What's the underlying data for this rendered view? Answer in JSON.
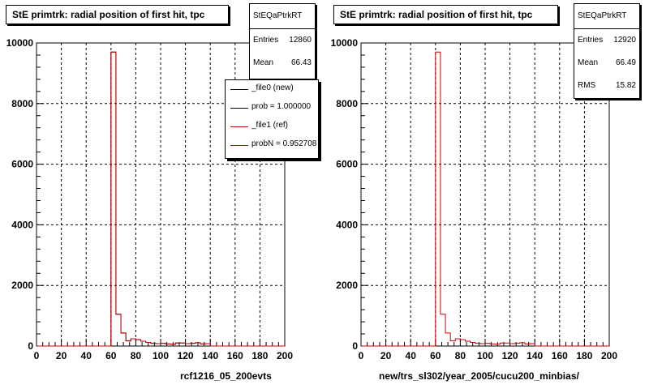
{
  "colors": {
    "new": "#000000",
    "ref": "#cc0000",
    "grid": "#000000"
  },
  "panels": [
    {
      "title": "StE primtrk: radial position of first hit, tpc",
      "stats": {
        "name": "StEQaPtrkRT",
        "rows": [
          {
            "label": "Entries",
            "value": "12860"
          },
          {
            "label": "Mean",
            "value": "66.43"
          }
        ]
      },
      "legend": [
        {
          "label": "_file0 (new)",
          "color": "#000000"
        },
        {
          "label": "prob = 1.000000",
          "color": "#000000"
        },
        {
          "label": "_file1 (ref)",
          "color": "#cc0000"
        },
        {
          "label": "probN = 0.952708",
          "color": "#cc0000"
        }
      ],
      "xlabel": "rcf1216_05_200evts"
    },
    {
      "title": "StE primtrk: radial position of first hit, tpc",
      "stats": {
        "name": "StEQaPtrkRT",
        "rows": [
          {
            "label": "Entries",
            "value": "12920"
          },
          {
            "label": "Mean",
            "value": "66.49"
          },
          {
            "label": "RMS",
            "value": "15.82"
          }
        ]
      },
      "legend": [],
      "xlabel": "new/trs_sl302/year_2005/cucu200_minbias/"
    }
  ],
  "chart_data": [
    {
      "type": "histogram",
      "title": "StE primtrk: radial position of first hit, tpc",
      "xlabel": "rcf1216_05_200evts",
      "xlim": [
        0,
        200
      ],
      "ylim": [
        0,
        10000
      ],
      "xticks": [
        0,
        20,
        40,
        60,
        80,
        100,
        120,
        140,
        160,
        180,
        200
      ],
      "yticks": [
        0,
        2000,
        4000,
        6000,
        8000,
        10000
      ],
      "grid": true,
      "bin_width": 4,
      "bin_edges_start": 0,
      "series": [
        {
          "name": "_file0 (new)",
          "color": "#000000",
          "values": [
            0,
            0,
            0,
            0,
            0,
            0,
            0,
            0,
            0,
            0,
            0,
            0,
            0,
            0,
            0,
            9700,
            1050,
            430,
            170,
            240,
            210,
            160,
            120,
            90,
            80,
            90,
            70,
            60,
            100,
            100,
            80,
            90,
            110,
            70,
            80,
            0,
            0,
            0,
            0,
            0,
            0,
            0,
            0,
            0,
            0,
            0,
            0,
            0,
            0,
            0
          ]
        },
        {
          "name": "_file1 (ref)",
          "color": "#cc0000",
          "values": [
            0,
            0,
            0,
            0,
            0,
            0,
            0,
            0,
            0,
            0,
            0,
            0,
            0,
            0,
            0,
            9700,
            1050,
            430,
            170,
            240,
            210,
            160,
            120,
            90,
            80,
            90,
            70,
            60,
            100,
            100,
            80,
            90,
            110,
            70,
            80,
            0,
            0,
            0,
            0,
            0,
            0,
            0,
            0,
            0,
            0,
            0,
            0,
            0,
            0,
            0
          ]
        }
      ]
    },
    {
      "type": "histogram",
      "title": "StE primtrk: radial position of first hit, tpc",
      "xlabel": "new/trs_sl302/year_2005/cucu200_minbias/",
      "xlim": [
        0,
        200
      ],
      "ylim": [
        0,
        10000
      ],
      "xticks": [
        0,
        20,
        40,
        60,
        80,
        100,
        120,
        140,
        160,
        180,
        200
      ],
      "yticks": [
        0,
        2000,
        4000,
        6000,
        8000,
        10000
      ],
      "grid": true,
      "bin_width": 4,
      "bin_edges_start": 0,
      "series": [
        {
          "name": "_file1 (ref)",
          "color": "#cc0000",
          "values": [
            0,
            0,
            0,
            0,
            0,
            0,
            0,
            0,
            0,
            0,
            0,
            0,
            0,
            0,
            0,
            9700,
            1050,
            430,
            170,
            240,
            210,
            160,
            120,
            90,
            80,
            90,
            70,
            60,
            100,
            100,
            80,
            90,
            110,
            70,
            80,
            0,
            0,
            0,
            0,
            0,
            0,
            0,
            0,
            0,
            0,
            0,
            0,
            0,
            0,
            0
          ]
        }
      ]
    }
  ]
}
